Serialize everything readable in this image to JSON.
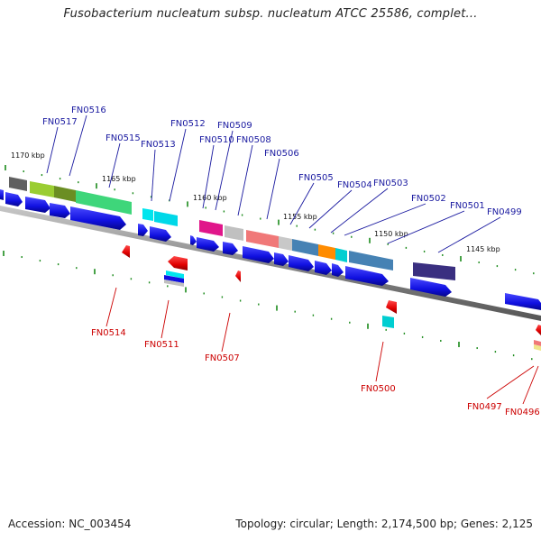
{
  "title": "Fusobacterium nucleatum subsp. nucleatum ATCC 25586, complet...",
  "footer": {
    "accession": "Accession: NC_003454",
    "topology": "Topology: circular; Length: 2,174,500 bp; Genes: 2,125"
  },
  "kbp_marks": [
    "1170 kbp",
    "1165 kbp",
    "1160 kbp",
    "1155 kbp",
    "1150 kbp",
    "1145 kbp"
  ],
  "upper_labels": [
    "FN0517",
    "FN0516",
    "FN0515",
    "FN0513",
    "FN0512",
    "FN0510",
    "FN0509",
    "FN0508",
    "FN0506",
    "FN0505",
    "FN0504",
    "FN0503",
    "FN0502",
    "FN0501",
    "FN0499"
  ],
  "lower_labels": [
    "FN0514",
    "FN0511",
    "FN0507",
    "FN0500",
    "FN0497",
    "FN0496"
  ],
  "colors": {
    "forward_gene": "#1010e0",
    "reverse_gene": "#e00000",
    "backbone": "#808080",
    "tick": "#1a8a1a",
    "upper_label": "#1a1aa0",
    "lower_label": "#cc0000"
  }
}
